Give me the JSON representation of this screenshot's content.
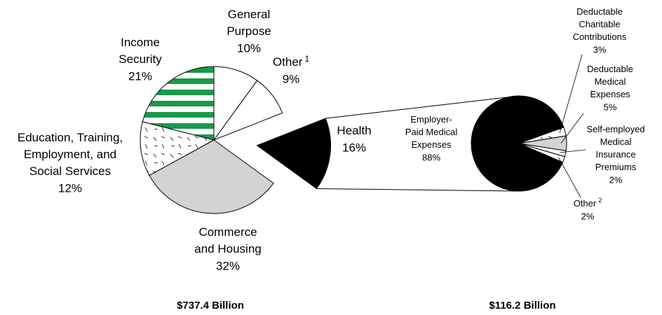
{
  "chart_data": [
    {
      "type": "pie",
      "categories": [
        [
          "General",
          "Purpose"
        ],
        [
          "Other"
        ],
        [
          "Health"
        ],
        [
          "Commerce",
          "and Housing"
        ],
        [
          "Education, Training,",
          "Employment, and",
          "Social Services"
        ],
        [
          "Income",
          "Security"
        ]
      ],
      "category_notes": [
        null,
        "1",
        null,
        null,
        null,
        null
      ],
      "values": [
        10,
        9,
        16,
        32,
        12,
        21
      ],
      "value_labels": [
        "10%",
        "9%",
        "16%",
        "32%",
        "12%",
        "21%"
      ],
      "colors": [
        "#ffffff",
        "#ffffff",
        "#000000",
        "#d3d3d3",
        "#ffffff",
        "#1a9a4a"
      ],
      "patterns": [
        null,
        null,
        null,
        null,
        "dashes",
        "stripes"
      ],
      "total": "$737.4 Billion"
    },
    {
      "type": "pie",
      "categories": [
        [
          "Employer-",
          "Paid Medical",
          "Expenses"
        ],
        [
          "Deductable",
          "Charitable",
          "Contributions"
        ],
        [
          "Deductable",
          "Medical",
          "Expenses"
        ],
        [
          "Self-employed",
          "Medical",
          "Insurance",
          "Premiums"
        ],
        [
          "Other"
        ]
      ],
      "category_notes": [
        null,
        null,
        null,
        null,
        "2"
      ],
      "values": [
        88,
        3,
        5,
        2,
        2
      ],
      "value_labels": [
        "88%",
        "3%",
        "5%",
        "2%",
        "2%"
      ],
      "colors": [
        "#000000",
        "#ffffff",
        "#d3d3d3",
        "#ffffff",
        "#ffffff"
      ],
      "patterns": [
        null,
        "dashes",
        null,
        "stripes",
        null
      ],
      "total": "$116.2 Billion"
    }
  ]
}
